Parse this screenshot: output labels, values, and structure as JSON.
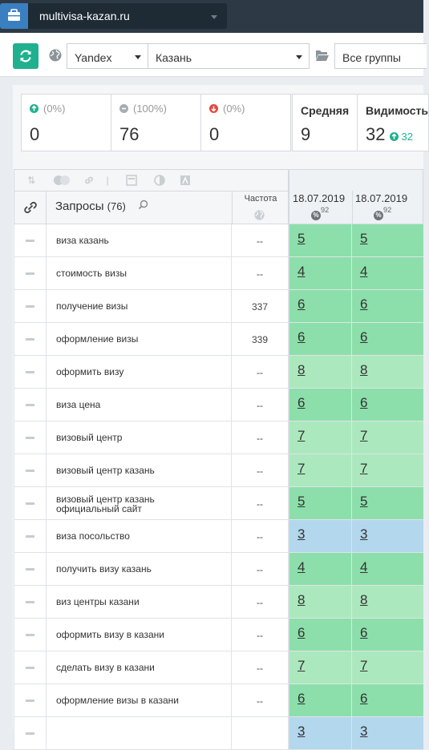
{
  "topbar": {
    "project_name": "multivisa-kazan.ru"
  },
  "toolbar": {
    "engine": "Yandex",
    "region": "Казань",
    "group": "Все группы"
  },
  "stats": [
    {
      "pct": "(0%)",
      "value": "0",
      "color": "#1fb08f"
    },
    {
      "pct": "(100%)",
      "value": "76",
      "color": "#a6adb4"
    },
    {
      "pct": "(0%)",
      "value": "0",
      "color": "#e2483d"
    }
  ],
  "avg": {
    "label": "Средняя",
    "value": "9"
  },
  "visibility": {
    "label": "Видимость",
    "value": "32",
    "delta": "32"
  },
  "table": {
    "queries_label": "Запросы",
    "queries_count": "(76)",
    "freq_label": "Частота",
    "dates": [
      "18.07.2019",
      "18.07.2019"
    ],
    "dates_sup": [
      "92",
      "92"
    ],
    "rows": [
      {
        "q": "виза казань",
        "freq": "--",
        "p1": "5",
        "p2": "5",
        "c": "g1"
      },
      {
        "q": "стоимость визы",
        "freq": "--",
        "p1": "4",
        "p2": "4",
        "c": "g1"
      },
      {
        "q": "получение визы",
        "freq": "337",
        "p1": "6",
        "p2": "6",
        "c": "g1"
      },
      {
        "q": "оформление визы",
        "freq": "339",
        "p1": "6",
        "p2": "6",
        "c": "g1"
      },
      {
        "q": "оформить визу",
        "freq": "--",
        "p1": "8",
        "p2": "8",
        "c": "g2"
      },
      {
        "q": "виза цена",
        "freq": "--",
        "p1": "6",
        "p2": "6",
        "c": "g1"
      },
      {
        "q": "визовый центр",
        "freq": "--",
        "p1": "7",
        "p2": "7",
        "c": "g2"
      },
      {
        "q": "визовый центр казань",
        "freq": "--",
        "p1": "7",
        "p2": "7",
        "c": "g2"
      },
      {
        "q": "визовый центр казань официальный сайт",
        "freq": "--",
        "p1": "5",
        "p2": "5",
        "c": "g1"
      },
      {
        "q": "виза посольство",
        "freq": "--",
        "p1": "3",
        "p2": "3",
        "c": "g3"
      },
      {
        "q": "получить визу казань",
        "freq": "--",
        "p1": "4",
        "p2": "4",
        "c": "g1"
      },
      {
        "q": "виз центры казани",
        "freq": "--",
        "p1": "8",
        "p2": "8",
        "c": "g2"
      },
      {
        "q": "оформить визу в казани",
        "freq": "--",
        "p1": "6",
        "p2": "6",
        "c": "g1"
      },
      {
        "q": "сделать визу в казани",
        "freq": "--",
        "p1": "7",
        "p2": "7",
        "c": "g2"
      },
      {
        "q": "оформление визы в казани",
        "freq": "--",
        "p1": "6",
        "p2": "6",
        "c": "g1"
      },
      {
        "q": "",
        "freq": "",
        "p1": "3",
        "p2": "3",
        "c": "g3"
      }
    ]
  }
}
